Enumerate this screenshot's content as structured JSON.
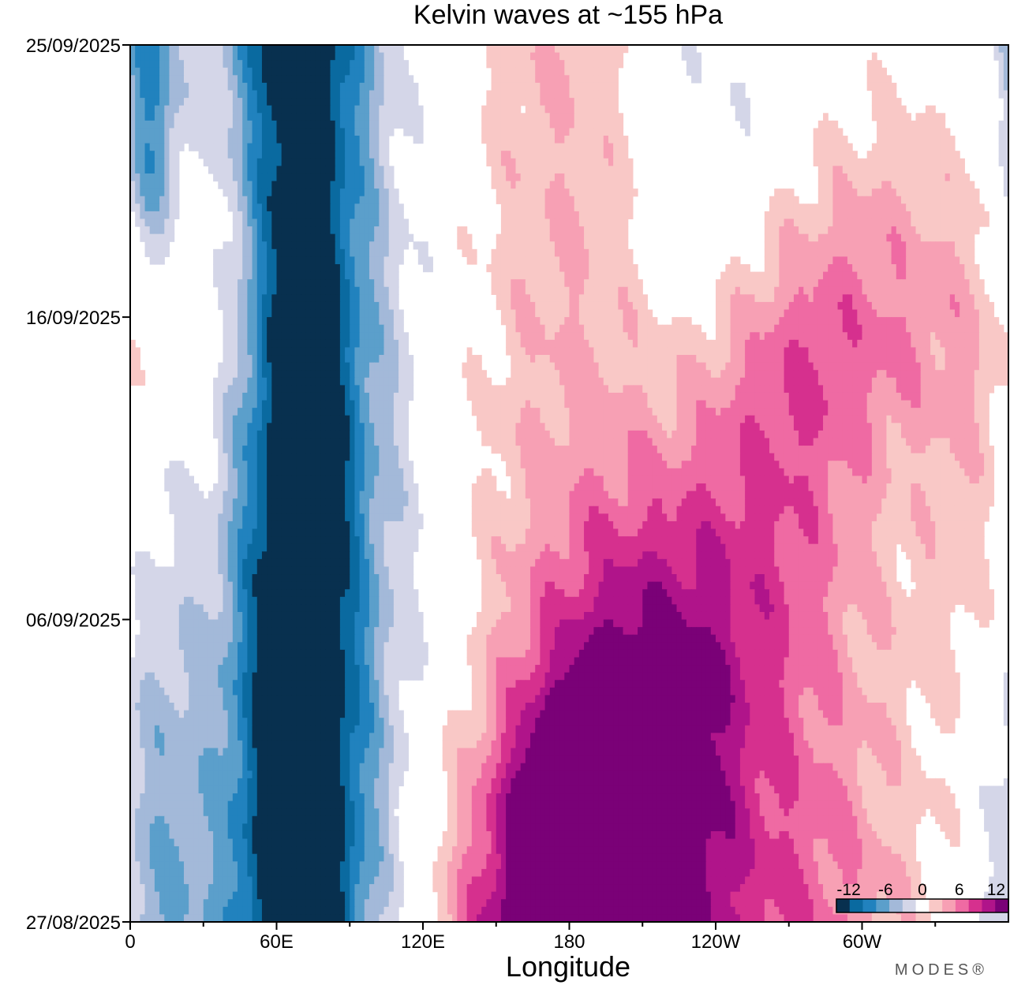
{
  "chart_data": {
    "type": "heatmap",
    "title": "Kelvin waves at ~155 hPa",
    "xlabel": "Longitude",
    "ylabel": "",
    "x_ticks": [
      "0",
      "60E",
      "120E",
      "180",
      "120W",
      "60W"
    ],
    "x_tick_values": [
      0,
      60,
      120,
      180,
      240,
      300
    ],
    "xlim": [
      0,
      360
    ],
    "y_ticks": [
      "27/08/2025",
      "06/09/2025",
      "16/09/2025",
      "25/09/2025"
    ],
    "y_tick_days": [
      0,
      10,
      20,
      29
    ],
    "ylim_days": [
      0,
      29
    ],
    "colorbar": {
      "tick_labels": [
        "-12",
        "-6",
        "0",
        "6",
        "12"
      ],
      "tick_values": [
        -12,
        -6,
        0,
        6,
        12
      ],
      "levels": [
        -14,
        -12,
        -10,
        -8,
        -6,
        -4,
        -2,
        2,
        4,
        6,
        8,
        10,
        12,
        14
      ],
      "colors": [
        "#08304f",
        "#0a6aa0",
        "#2182be",
        "#5b9fcb",
        "#a3b9d9",
        "#d4d6e8",
        "#ffffff",
        "#f9c8c6",
        "#f7a0b4",
        "#ef6aa3",
        "#d6308e",
        "#b0148a",
        "#7a0177"
      ],
      "placement": "bottom-right"
    },
    "features": [
      {
        "lon": 70,
        "day_start": 0,
        "day_end": 29,
        "speed": 0,
        "amplitude": -13,
        "width_lon": 18,
        "width_days": 30
      },
      {
        "lon": 70,
        "day_start": 0,
        "day_end": 29,
        "speed": 0,
        "amplitude": -5,
        "width_lon": 42,
        "width_days": 30
      },
      {
        "lon": 10,
        "day_start": 0,
        "day_end": 14,
        "speed": 0,
        "amplitude": -4.5,
        "width_lon": 14,
        "width_days": 9
      },
      {
        "lon": 8,
        "day_start": 26,
        "day_end": 29,
        "speed": 0,
        "amplitude": -7,
        "width_lon": 8,
        "width_days": 3
      },
      {
        "lon": 180,
        "day_start": 0,
        "day_end": 16,
        "speed": 5,
        "amplitude": 9,
        "width_lon": 40,
        "width_days": 6
      },
      {
        "lon": 190,
        "day_start": 0,
        "day_end": 3,
        "speed": 0,
        "amplitude": 11,
        "width_lon": 25,
        "width_days": 3
      },
      {
        "lon": 200,
        "day_start": 6,
        "day_end": 29,
        "speed": 0,
        "amplitude": 6,
        "width_lon": 45,
        "width_days": 11
      },
      {
        "lon": 280,
        "day_start": 0,
        "day_end": 18,
        "speed": 5,
        "amplitude": 6,
        "width_lon": 40,
        "width_days": 7
      },
      {
        "lon": 230,
        "day_start": 17,
        "day_end": 29,
        "speed": 0,
        "amplitude": -6,
        "width_lon": 30,
        "width_days": 5
      },
      {
        "lon": 320,
        "day_start": 7,
        "day_end": 12,
        "speed": 0,
        "amplitude": -3.5,
        "width_lon": 25,
        "width_days": 4
      }
    ]
  },
  "brand": "MODES®"
}
